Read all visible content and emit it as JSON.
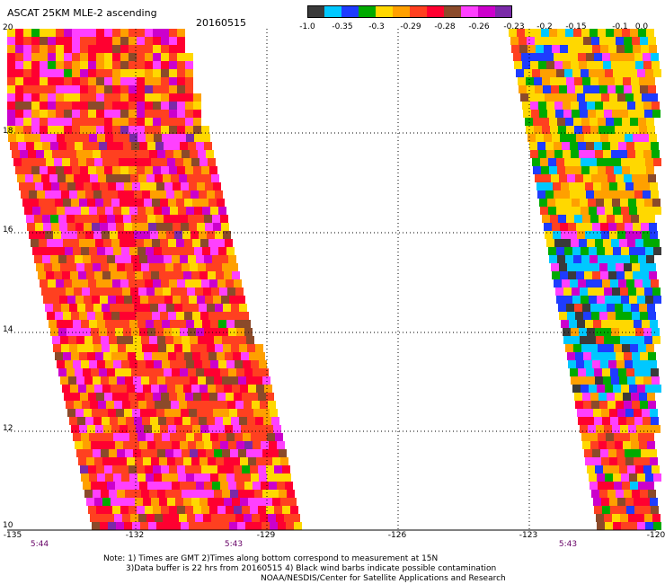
{
  "header": {
    "title": "ASCAT 25KM MLE-2 ascending",
    "date": "20160515"
  },
  "colorbar": {
    "colors": [
      "#3a3a3a",
      "#00c8ff",
      "#1e3cff",
      "#00aa00",
      "#ffd800",
      "#ffa000",
      "#ff4020",
      "#ff0030",
      "#8b4a2a",
      "#ff40ff",
      "#cc00cc",
      "#7a2aa8"
    ],
    "labels": [
      "-1.0",
      "-0.35",
      "-0.3",
      "-0.29",
      "-0.28",
      "-0.26",
      "-0.23",
      "-0.2",
      "-0.15",
      "-0.1",
      "0.0"
    ]
  },
  "axes": {
    "y_ticks": [
      "20",
      "18",
      "16",
      "14",
      "12",
      "10"
    ],
    "x_ticks": [
      "-135",
      "-132",
      "-129",
      "-126",
      "-123",
      "-120"
    ],
    "time_labels": [
      "5:44",
      "5:43",
      "5:43"
    ]
  },
  "notes": {
    "line1": "Note: 1) Times are GMT 2)Times along bottom correspond to measurement at 15N",
    "line2": "3)Data buffer is 22 hrs from 20160515 4) Black wind barbs indicate possible contamination",
    "line3": "NOAA/NESDIS/Center for Satellite Applications and Research"
  }
}
